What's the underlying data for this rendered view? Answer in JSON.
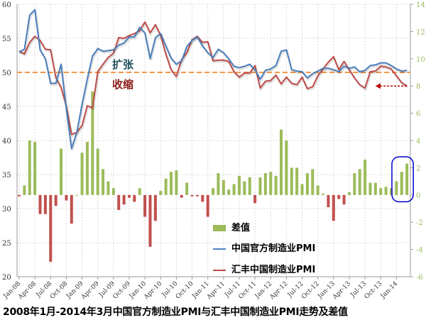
{
  "chart_data": {
    "type": "line+bar",
    "title": "2008年1月-2014年3月中国官方制造业PMI与汇丰中国制造业PMI走势及差值",
    "x_tick_labels": [
      "Jan-08",
      "Apr-08",
      "Jul-08",
      "Oct-08",
      "Jan-09",
      "Apr-09",
      "Jul-09",
      "Oct-09",
      "Jan-10",
      "Apr-10",
      "Jul-10",
      "Oct-10",
      "Jan-11",
      "Apr-11",
      "Jul-11",
      "Oct-11",
      "Jan-12",
      "Apr-12",
      "Jul-12",
      "Oct-12",
      "Jan-13",
      "Apr-13",
      "Jul-13",
      "Oct-13",
      "Jan-14"
    ],
    "x_range": [
      "2008-01",
      "2014-03"
    ],
    "left_axis": {
      "min": 20,
      "max": 60,
      "ticks": [
        20,
        25,
        30,
        35,
        40,
        45,
        50,
        55,
        60
      ]
    },
    "right_axis": {
      "min": -6,
      "max": 14,
      "ticks": [
        -6,
        -4,
        -2,
        0,
        2,
        4,
        6,
        8,
        10,
        12,
        14
      ]
    },
    "reference_line": 50,
    "grid": true,
    "legend_position": "bottom-center",
    "series": [
      {
        "name": "中国官方制造业PMI",
        "type": "line",
        "axis": "left",
        "color": "#4a7ebb",
        "values": [
          53.0,
          53.4,
          58.4,
          59.2,
          53.3,
          52.0,
          48.4,
          48.4,
          51.2,
          44.6,
          38.8,
          41.2,
          45.3,
          49.0,
          52.4,
          53.5,
          53.1,
          53.2,
          53.3,
          54.0,
          54.3,
          55.2,
          55.2,
          56.6,
          55.8,
          52.0,
          55.1,
          55.7,
          53.9,
          52.1,
          51.2,
          51.7,
          53.8,
          54.7,
          55.2,
          53.9,
          52.9,
          52.2,
          53.4,
          52.9,
          52.0,
          50.9,
          50.7,
          50.9,
          51.2,
          50.4,
          49.0,
          50.3,
          50.5,
          51.0,
          53.1,
          53.3,
          50.4,
          50.2,
          50.1,
          49.2,
          49.8,
          50.2,
          50.6,
          50.6,
          50.4,
          50.1,
          50.9,
          50.6,
          50.8,
          50.1,
          50.3,
          51.0,
          51.1,
          51.4,
          51.4,
          51.0,
          50.5,
          50.2,
          50.3
        ]
      },
      {
        "name": "汇丰中国制造业PMI",
        "type": "line",
        "axis": "left",
        "color": "#be4b48",
        "values": [
          53.1,
          52.7,
          54.4,
          55.3,
          54.7,
          53.4,
          53.3,
          49.2,
          47.8,
          45.0,
          40.9,
          41.2,
          42.2,
          45.1,
          44.8,
          50.1,
          51.2,
          52.2,
          52.8,
          55.1,
          55.0,
          55.4,
          55.7,
          56.1,
          57.4,
          55.8,
          57.0,
          55.4,
          52.7,
          50.4,
          49.4,
          51.9,
          52.9,
          54.8,
          55.3,
          54.4,
          54.5,
          51.7,
          51.8,
          51.8,
          51.6,
          50.1,
          49.3,
          49.9,
          49.9,
          51.0,
          47.7,
          48.7,
          48.8,
          49.6,
          48.3,
          49.3,
          48.4,
          48.2,
          49.3,
          47.6,
          47.9,
          49.5,
          50.5,
          51.5,
          52.3,
          50.4,
          51.6,
          50.4,
          49.2,
          48.2,
          47.7,
          50.1,
          50.2,
          50.9,
          50.8,
          50.5,
          49.5,
          48.5,
          48.0
        ]
      },
      {
        "name": "差值",
        "type": "bar",
        "axis": "right",
        "color_pos": "#9bbb59",
        "color_neg": "#c0504d",
        "values": [
          -0.1,
          0.7,
          4.0,
          3.9,
          -1.4,
          -1.4,
          -4.9,
          -0.8,
          3.4,
          -0.4,
          -2.1,
          0.0,
          3.1,
          3.9,
          7.6,
          3.4,
          1.9,
          1.0,
          0.5,
          -1.1,
          -0.7,
          -0.2,
          -0.5,
          0.5,
          -1.6,
          -3.8,
          -1.9,
          0.3,
          1.2,
          1.7,
          1.8,
          -0.2,
          0.9,
          -0.1,
          -0.1,
          -0.5,
          -1.6,
          0.5,
          1.6,
          1.1,
          0.4,
          0.8,
          1.4,
          1.0,
          1.3,
          -0.6,
          1.3,
          1.6,
          1.7,
          1.4,
          4.8,
          4.0,
          2.0,
          2.0,
          0.8,
          1.6,
          1.9,
          0.7,
          0.1,
          -0.9,
          -1.9,
          -0.3,
          -0.7,
          0.2,
          1.6,
          1.9,
          2.6,
          0.9,
          0.9,
          0.5,
          0.6,
          0.5,
          1.0,
          1.7,
          2.3
        ]
      }
    ],
    "annotations": {
      "expand": "扩张",
      "contract": "收缩"
    }
  },
  "legend": {
    "diff": "差值",
    "official": "中国官方制造业PMI",
    "hsbc": "汇丰中国制造业PMI"
  }
}
